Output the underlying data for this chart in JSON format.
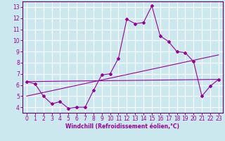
{
  "title": "",
  "xlabel": "Windchill (Refroidissement éolien,°C)",
  "bg_color": "#cce8ef",
  "line_color": "#990099",
  "grid_color": "#ffffff",
  "spine_color": "#660066",
  "xlim": [
    -0.5,
    23.5
  ],
  "ylim": [
    3.5,
    13.5
  ],
  "xticks": [
    0,
    1,
    2,
    3,
    4,
    5,
    6,
    7,
    8,
    9,
    10,
    11,
    12,
    13,
    14,
    15,
    16,
    17,
    18,
    19,
    20,
    21,
    22,
    23
  ],
  "yticks": [
    4,
    5,
    6,
    7,
    8,
    9,
    10,
    11,
    12,
    13
  ],
  "line1_x": [
    0,
    1,
    2,
    3,
    4,
    5,
    6,
    7,
    8,
    9,
    10,
    11,
    12,
    13,
    14,
    15,
    16,
    17,
    18,
    19,
    20,
    21,
    22,
    23
  ],
  "line1_y": [
    6.3,
    6.1,
    5.0,
    4.3,
    4.5,
    3.9,
    4.0,
    4.0,
    5.5,
    6.9,
    7.0,
    8.4,
    11.9,
    11.5,
    11.6,
    13.1,
    10.4,
    9.9,
    9.0,
    8.9,
    8.1,
    5.0,
    5.9,
    6.5
  ],
  "line2_x": [
    0,
    23
  ],
  "line2_y": [
    6.3,
    6.5
  ],
  "line3_x": [
    0,
    23
  ],
  "line3_y": [
    5.0,
    8.7
  ],
  "tick_fontsize": 5.5,
  "xlabel_fontsize": 5.5
}
